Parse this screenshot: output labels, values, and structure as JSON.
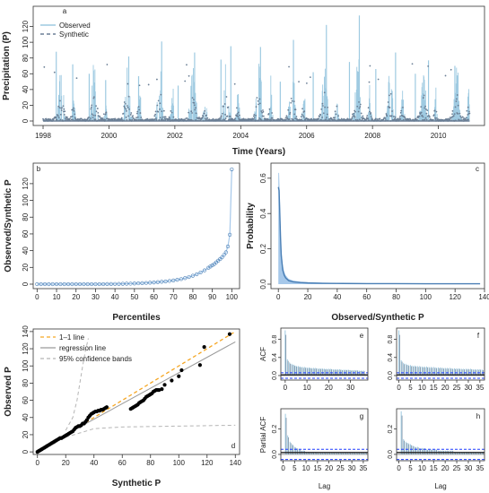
{
  "colors": {
    "observed": "#9ecae1",
    "synthetic": "#6b7f95",
    "dist_line": "#4a7fb5",
    "dist_band": "#a6c8ea",
    "one_to_one": "#f5a623",
    "regression": "#9a9a9a",
    "bands": "#b5b5b5",
    "ci": "#1f3cff",
    "mean": "#222222"
  },
  "chart_data": [
    {
      "panel": "a",
      "type": "line",
      "xlabel": "Time (Years)",
      "ylabel": "Precipitation (P)",
      "xlim": [
        1997.7,
        2011.4
      ],
      "ylim": [
        0,
        140
      ],
      "xticks": [
        "1998",
        "2000",
        "2002",
        "2004",
        "2006",
        "2008",
        "2010"
      ],
      "yticks": [
        "0",
        "20",
        "40",
        "60",
        "80",
        "100",
        "120"
      ],
      "legend": "top-left",
      "series": [
        {
          "name": "Observed",
          "style": "solid line"
        },
        {
          "name": "Synthetic",
          "style": "dashed line / points"
        }
      ],
      "peaks": [
        {
          "x": 1998.4,
          "y": 88
        },
        {
          "x": 1998.9,
          "y": 72
        },
        {
          "x": 1999.4,
          "y": 60
        },
        {
          "x": 1999.9,
          "y": 52
        },
        {
          "x": 2000.6,
          "y": 82
        },
        {
          "x": 2000.9,
          "y": 57
        },
        {
          "x": 2001.6,
          "y": 101
        },
        {
          "x": 2002.1,
          "y": 45
        },
        {
          "x": 2002.6,
          "y": 87
        },
        {
          "x": 2003.4,
          "y": 78
        },
        {
          "x": 2003.7,
          "y": 95
        },
        {
          "x": 2004.6,
          "y": 94
        },
        {
          "x": 2005.2,
          "y": 50
        },
        {
          "x": 2005.6,
          "y": 103
        },
        {
          "x": 2006.2,
          "y": 62
        },
        {
          "x": 2006.6,
          "y": 122
        },
        {
          "x": 2007.3,
          "y": 75
        },
        {
          "x": 2007.6,
          "y": 134
        },
        {
          "x": 2008.1,
          "y": 66
        },
        {
          "x": 2008.7,
          "y": 87
        },
        {
          "x": 2009.3,
          "y": 60
        },
        {
          "x": 2009.7,
          "y": 77
        },
        {
          "x": 2010.5,
          "y": 70
        },
        {
          "x": 2010.9,
          "y": 31
        }
      ]
    },
    {
      "panel": "b",
      "type": "line",
      "xlabel": "Percentiles",
      "ylabel": "Observed/Synthetic P",
      "xlim": [
        0,
        100
      ],
      "ylim": [
        0,
        137
      ],
      "xticks": [
        "0",
        "10",
        "20",
        "30",
        "40",
        "50",
        "60",
        "70",
        "80",
        "90",
        "100"
      ],
      "yticks": [
        "0",
        "20",
        "40",
        "60",
        "80",
        "100",
        "120"
      ],
      "x": [
        0,
        2,
        4,
        6,
        8,
        10,
        12,
        14,
        16,
        18,
        20,
        22,
        24,
        26,
        28,
        30,
        32,
        34,
        36,
        38,
        40,
        42,
        44,
        46,
        48,
        50,
        52,
        54,
        56,
        58,
        60,
        62,
        64,
        66,
        68,
        70,
        72,
        74,
        76,
        78,
        80,
        82,
        84,
        86,
        88,
        89,
        90,
        91,
        92,
        93,
        94,
        95,
        96,
        97,
        98,
        99,
        100
      ],
      "values": [
        0,
        0,
        0,
        0,
        0,
        0,
        0,
        0,
        0,
        0,
        0,
        0,
        0,
        0,
        0,
        0,
        0,
        0,
        0.1,
        0.1,
        0.2,
        0.3,
        0.4,
        0.5,
        0.6,
        0.8,
        1,
        1.2,
        1.4,
        1.7,
        2,
        2.4,
        2.8,
        3.2,
        3.8,
        4.4,
        5.2,
        6.1,
        7.2,
        8.5,
        10,
        11.8,
        14,
        16.5,
        19.5,
        21,
        22.5,
        24,
        26,
        28,
        30,
        32,
        35,
        38,
        45,
        59,
        137
      ]
    },
    {
      "panel": "c",
      "type": "line",
      "xlabel": "Observed/Synthetic P",
      "ylabel": "Probability",
      "xlim": [
        -5,
        140
      ],
      "ylim": [
        0,
        0.66
      ],
      "xticks": [
        "0",
        "20",
        "40",
        "60",
        "80",
        "100",
        "120",
        "140"
      ],
      "yticks": [
        "0.0",
        "0.2",
        "0.4",
        "0.6"
      ],
      "x": [
        0,
        0.5,
        1,
        1.5,
        2,
        3,
        4,
        5,
        7,
        10,
        15,
        20,
        30,
        40,
        60,
        80,
        100,
        120,
        137
      ],
      "values": [
        0.55,
        0.53,
        0.4,
        0.26,
        0.16,
        0.08,
        0.05,
        0.035,
        0.02,
        0.013,
        0.009,
        0.007,
        0.005,
        0.004,
        0.003,
        0.003,
        0.002,
        0.002,
        0.002
      ],
      "band_upper": [
        0.63,
        0.63,
        0.5,
        0.33,
        0.2,
        0.11,
        0.07,
        0.05,
        0.03,
        0.02,
        0.014,
        0.011,
        0.008,
        0.007,
        0.006,
        0.005,
        0.005,
        0.004,
        0.004
      ]
    },
    {
      "panel": "d",
      "type": "scatter",
      "xlabel": "Synthetic P",
      "ylabel": "Observed P",
      "xlim": [
        0,
        140
      ],
      "ylim": [
        0,
        140
      ],
      "xticks": [
        "0",
        "20",
        "40",
        "60",
        "80",
        "100",
        "120",
        "140"
      ],
      "yticks": [
        "0",
        "20",
        "40",
        "60",
        "80",
        "100",
        "120",
        "140"
      ],
      "legend": "top-left",
      "series": [
        {
          "name": "1–1 line"
        },
        {
          "name": "regression line"
        },
        {
          "name": "95% confidence bands"
        }
      ],
      "points": [
        [
          0,
          0
        ],
        [
          1,
          1
        ],
        [
          2,
          2
        ],
        [
          3,
          3
        ],
        [
          4,
          4
        ],
        [
          5,
          5
        ],
        [
          6,
          6
        ],
        [
          7,
          7
        ],
        [
          8,
          8
        ],
        [
          9,
          9
        ],
        [
          10,
          10
        ],
        [
          11,
          11
        ],
        [
          12,
          12
        ],
        [
          13,
          13
        ],
        [
          14,
          14
        ],
        [
          15,
          15
        ],
        [
          16,
          16
        ],
        [
          17,
          16
        ],
        [
          18,
          17
        ],
        [
          19,
          18
        ],
        [
          20,
          19
        ],
        [
          21,
          20
        ],
        [
          22,
          21
        ],
        [
          23,
          22
        ],
        [
          24,
          23
        ],
        [
          25,
          24
        ],
        [
          26,
          26
        ],
        [
          27,
          28
        ],
        [
          28,
          29
        ],
        [
          29,
          30
        ],
        [
          30,
          30
        ],
        [
          31,
          31
        ],
        [
          32,
          33
        ],
        [
          33,
          33
        ],
        [
          34,
          35
        ],
        [
          35,
          37
        ],
        [
          36,
          40
        ],
        [
          37,
          42
        ],
        [
          38,
          44
        ],
        [
          39,
          45
        ],
        [
          40,
          46
        ],
        [
          41,
          47
        ],
        [
          42,
          47
        ],
        [
          43,
          48
        ],
        [
          44,
          48
        ],
        [
          45,
          49
        ],
        [
          46,
          49
        ],
        [
          47,
          50
        ],
        [
          48,
          51
        ],
        [
          49,
          52
        ],
        [
          66,
          50
        ],
        [
          67,
          51
        ],
        [
          68,
          52
        ],
        [
          69,
          53
        ],
        [
          70,
          54
        ],
        [
          71,
          55
        ],
        [
          72,
          57
        ],
        [
          73,
          58
        ],
        [
          74,
          59
        ],
        [
          75,
          60
        ],
        [
          76,
          62
        ],
        [
          77,
          64
        ],
        [
          78,
          65
        ],
        [
          79,
          66
        ],
        [
          80,
          67
        ],
        [
          81,
          68
        ],
        [
          82,
          70
        ],
        [
          83,
          71
        ],
        [
          84,
          72
        ],
        [
          85,
          72
        ],
        [
          86,
          72
        ],
        [
          88,
          73
        ],
        [
          90,
          78
        ],
        [
          95,
          83
        ],
        [
          100,
          88
        ],
        [
          102,
          95
        ],
        [
          115,
          101
        ],
        [
          118,
          122
        ],
        [
          136,
          137
        ]
      ],
      "regression": {
        "slope": 0.9,
        "intercept": 2
      },
      "ci_upper": [
        [
          20,
          25
        ],
        [
          25,
          40
        ],
        [
          28,
          60
        ],
        [
          30,
          80
        ],
        [
          32,
          100
        ],
        [
          34,
          118
        ],
        [
          36,
          132
        ]
      ],
      "ci_lower": [
        [
          20,
          17
        ],
        [
          30,
          22
        ],
        [
          40,
          27
        ],
        [
          60,
          29
        ],
        [
          100,
          30
        ],
        [
          140,
          31
        ]
      ]
    }
  ],
  "acf_panels": [
    {
      "panel": "e",
      "ylabel": "ACF",
      "yticks": [
        "0.0",
        "0.4",
        "0.8"
      ],
      "xticks": [
        "0",
        "10",
        "20",
        "30"
      ],
      "xlim": [
        -2,
        38
      ],
      "ylim": [
        -0.1,
        1.05
      ],
      "lags": 37,
      "ci": 0.06,
      "values": [
        1,
        0.36,
        0.29,
        0.26,
        0.24,
        0.22,
        0.21,
        0.2,
        0.19,
        0.19,
        0.18,
        0.18,
        0.17,
        0.17,
        0.17,
        0.16,
        0.16,
        0.16,
        0.15,
        0.15,
        0.15,
        0.15,
        0.14,
        0.14,
        0.14,
        0.14,
        0.13,
        0.13,
        0.13,
        0.13,
        0.12,
        0.12,
        0.12,
        0.12,
        0.11,
        0.11,
        0.11
      ]
    },
    {
      "panel": "f",
      "ylabel": "",
      "yticks": [
        "0.0",
        "0.4",
        "0.8"
      ],
      "xticks": [
        "0",
        "5",
        "10",
        "15",
        "20",
        "25",
        "30",
        "35"
      ],
      "xlim": [
        -1,
        37
      ],
      "ylim": [
        -0.1,
        1.05
      ],
      "lags": 37,
      "ci": 0.06,
      "values": [
        1,
        0.34,
        0.28,
        0.26,
        0.24,
        0.23,
        0.22,
        0.22,
        0.21,
        0.21,
        0.2,
        0.2,
        0.2,
        0.19,
        0.19,
        0.19,
        0.18,
        0.18,
        0.18,
        0.17,
        0.17,
        0.17,
        0.17,
        0.16,
        0.16,
        0.16,
        0.16,
        0.15,
        0.15,
        0.15,
        0.15,
        0.15,
        0.14,
        0.14,
        0.14,
        0.14,
        0.13
      ]
    },
    {
      "panel": "g",
      "ylabel": "Partial ACF",
      "xlabel": "Lag",
      "yticks": [
        "0.0",
        "0.2"
      ],
      "xticks": [
        "0",
        "5",
        "10",
        "15",
        "20",
        "25",
        "30",
        "35"
      ],
      "xlim": [
        -1,
        37
      ],
      "ylim": [
        -0.05,
        0.36
      ],
      "lags": 36,
      "ci": 0.04,
      "values": [
        0.32,
        0.15,
        0.1,
        0.08,
        0.06,
        0.05,
        0.04,
        0.03,
        0.03,
        0.02,
        0.02,
        0.02,
        0.02,
        0.02,
        0.01,
        0.01,
        0.01,
        0.01,
        0.01,
        0.01,
        0.01,
        0.01,
        0.01,
        0.01,
        0.01,
        0.01,
        0.01,
        0.01,
        0.01,
        0.01,
        0.01,
        0.01,
        0.01,
        0.01,
        0.01,
        0.01
      ]
    },
    {
      "panel": "h",
      "ylabel": "",
      "xlabel": "Lag",
      "yticks": [
        "0.0",
        "0.2"
      ],
      "xticks": [
        "0",
        "5",
        "10",
        "15",
        "20",
        "25",
        "30",
        "35"
      ],
      "xlim": [
        -1,
        37
      ],
      "ylim": [
        -0.05,
        0.36
      ],
      "lags": 36,
      "ci": 0.04,
      "values": [
        0.34,
        0.12,
        0.1,
        0.09,
        0.08,
        0.07,
        0.06,
        0.06,
        0.05,
        0.05,
        0.05,
        0.04,
        0.04,
        0.04,
        0.04,
        0.04,
        0.03,
        0.03,
        0.03,
        0.03,
        0.03,
        0.03,
        0.03,
        0.02,
        0.02,
        0.02,
        0.02,
        0.02,
        0.02,
        0.02,
        0.02,
        0.02,
        0.02,
        0.02,
        0.02,
        0.02
      ]
    }
  ]
}
